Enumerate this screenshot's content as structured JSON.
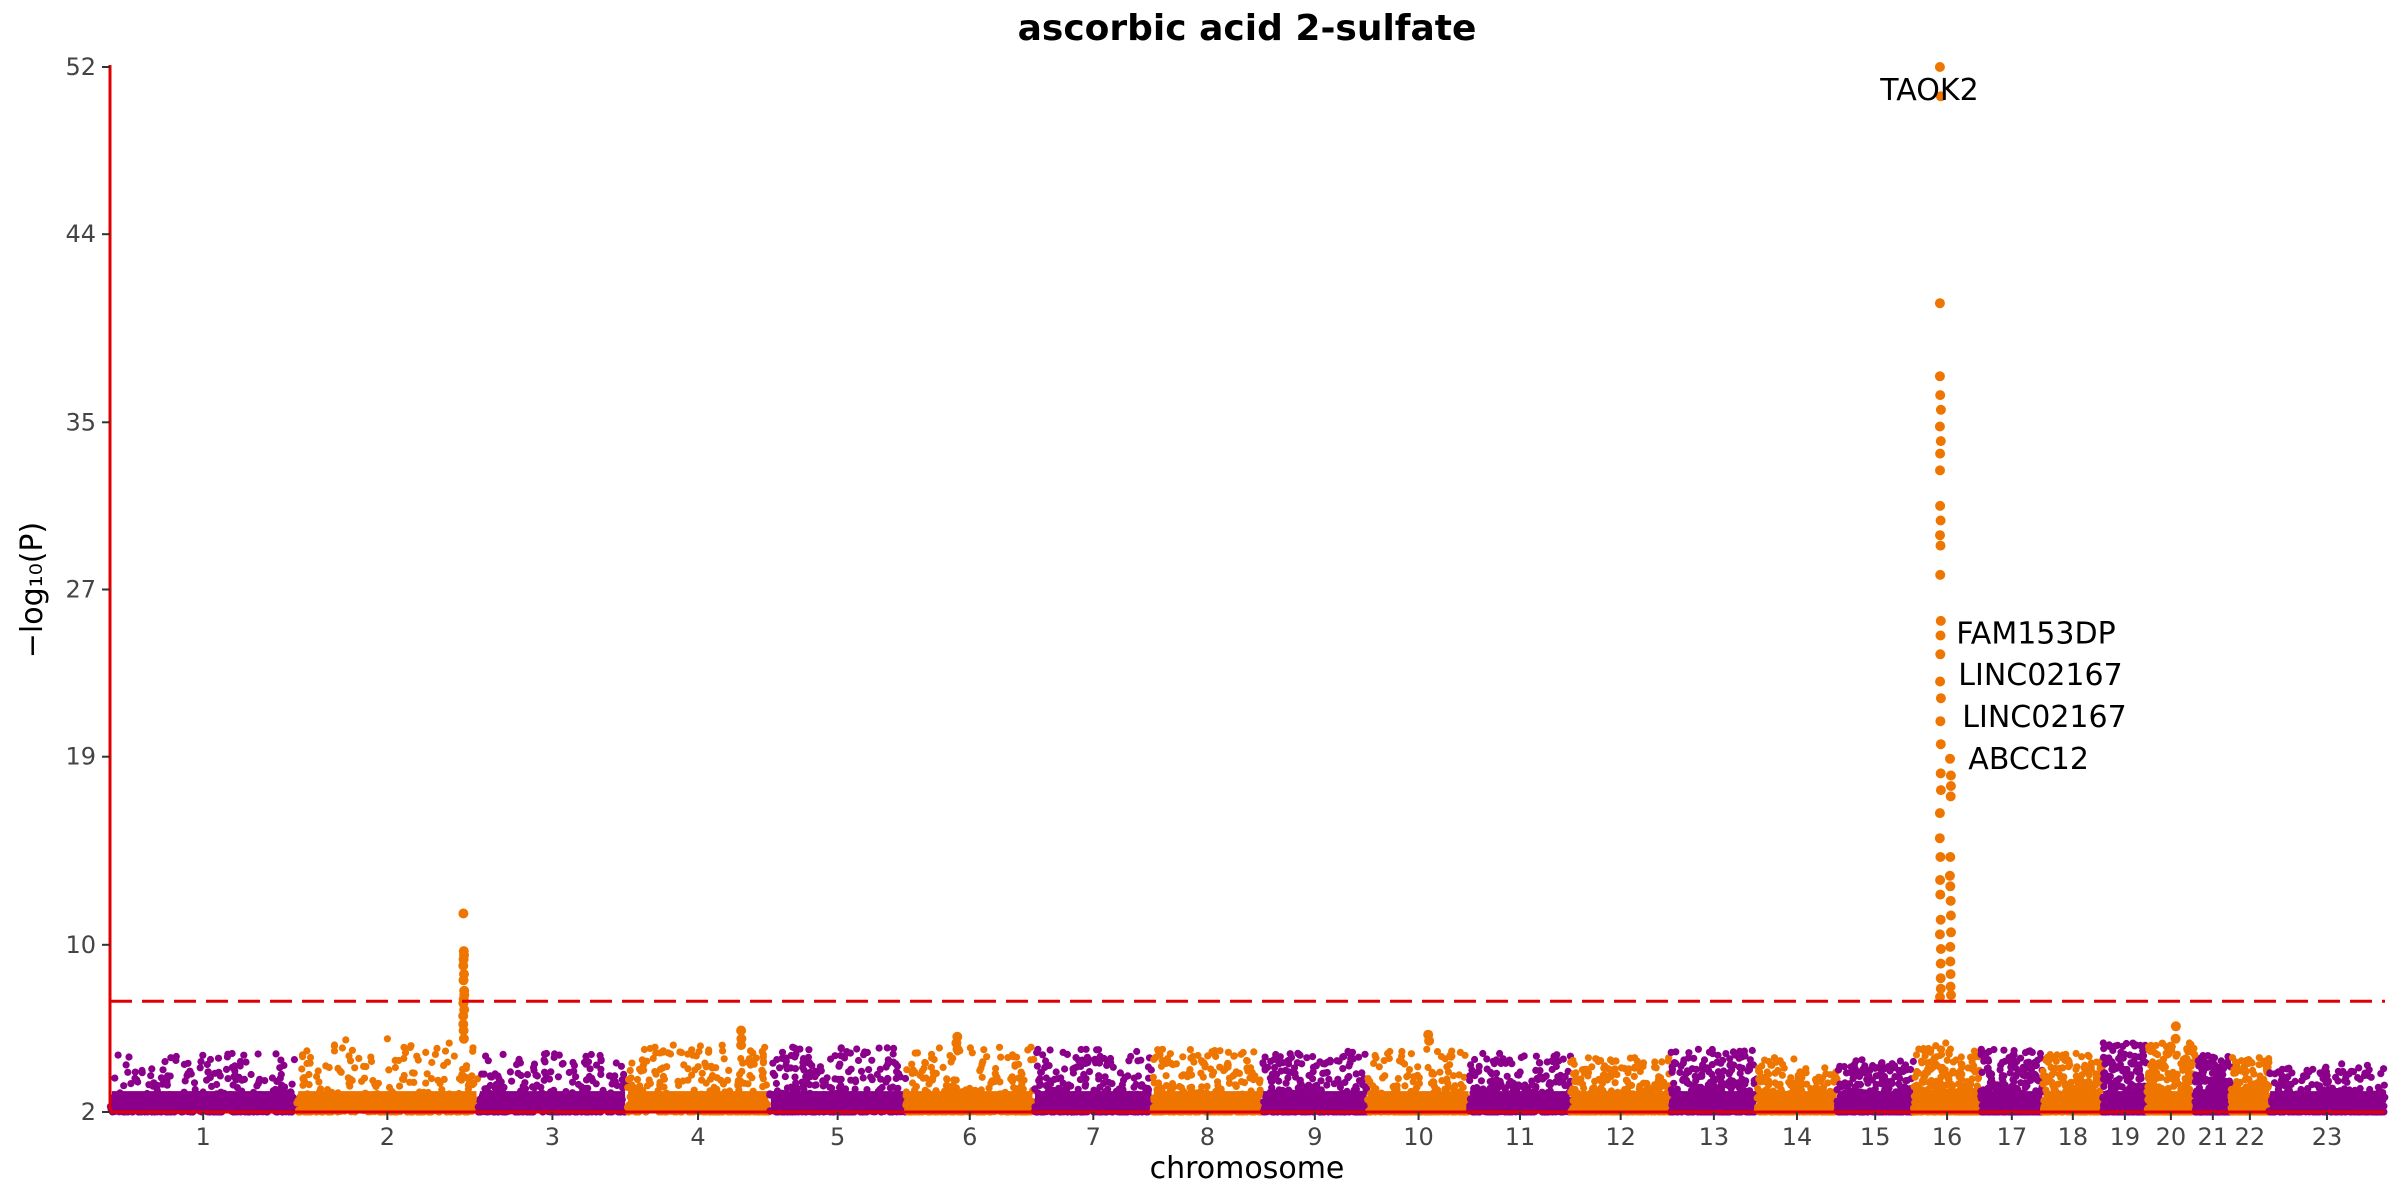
{
  "chart_data": {
    "type": "scatter",
    "subtype": "manhattan",
    "title": "ascorbic acid 2-sulfate",
    "xlabel": "chromosome",
    "ylabel": "−log₁₀(P)",
    "ylim": [
      2,
      52
    ],
    "yticks": [
      "2",
      "10",
      "19",
      "27",
      "35",
      "44",
      "52"
    ],
    "ytick_values": [
      2,
      10,
      19,
      27,
      35,
      44,
      52
    ],
    "colors": {
      "odd": "#8B008B",
      "even": "#EE7600",
      "axis": "#E00000",
      "threshold": "#E00000"
    },
    "threshold": 7.3,
    "grid": false,
    "chromosomes": [
      "1",
      "2",
      "3",
      "4",
      "5",
      "6",
      "7",
      "8",
      "9",
      "10",
      "11",
      "12",
      "13",
      "14",
      "15",
      "16",
      "17",
      "18",
      "19",
      "20",
      "21",
      "22",
      "23"
    ],
    "chromosome_lengths": [
      249,
      243,
      198,
      191,
      182,
      171,
      159,
      146,
      141,
      136,
      135,
      134,
      115,
      107,
      102,
      90,
      83,
      80,
      59,
      64,
      48,
      51,
      155
    ],
    "chromosome_max_background": [
      4.8,
      5.5,
      4.8,
      5.2,
      5.1,
      5.1,
      5.0,
      5.0,
      4.9,
      5.0,
      4.8,
      4.6,
      5.0,
      4.6,
      4.5,
      5.3,
      5.0,
      4.8,
      5.3,
      5.3,
      4.7,
      4.6,
      4.3
    ],
    "peaks": [
      {
        "chromosome": "2",
        "position": 0.92,
        "values": [
          11.5,
          9.7,
          9.5,
          9.3,
          9.0,
          8.6,
          8.3,
          7.8,
          7.6,
          7.4,
          7.2,
          6.9,
          6.6,
          6.2,
          5.9,
          5.5
        ]
      },
      {
        "chromosome": "16",
        "position": 0.4,
        "values": [
          52.0,
          50.6,
          40.7,
          37.2,
          36.3,
          35.6,
          34.8,
          34.1,
          33.5,
          32.7,
          31.0,
          30.3,
          29.6,
          29.1,
          27.7,
          25.5,
          24.8,
          23.9,
          22.6,
          21.8,
          20.7,
          19.6,
          18.2,
          17.4,
          16.3,
          15.1,
          14.2,
          13.1,
          12.4,
          11.2,
          10.5,
          9.8,
          9.1,
          8.4,
          7.9,
          7.5
        ]
      },
      {
        "chromosome": "16",
        "position": 0.55,
        "values": [
          18.9,
          18.1,
          17.6,
          17.1,
          14.2,
          13.3,
          12.8,
          12.1,
          11.4,
          10.6,
          9.9,
          9.2,
          8.6,
          8.0,
          7.6
        ]
      },
      {
        "chromosome": "4",
        "position": 0.8,
        "values": [
          5.9,
          5.5,
          5.2
        ]
      },
      {
        "chromosome": "6",
        "position": 0.4,
        "values": [
          5.6,
          5.3,
          5.0
        ]
      },
      {
        "chromosome": "10",
        "position": 0.6,
        "values": [
          5.7,
          5.4
        ]
      },
      {
        "chromosome": "20",
        "position": 0.6,
        "values": [
          6.1,
          5.5
        ]
      }
    ],
    "annotations": [
      {
        "label": "TAOK2",
        "chromosome": "16",
        "value": 50.9
      },
      {
        "label": "FAM153DP",
        "chromosome": "16",
        "value": 24.9
      },
      {
        "label": "LINC02167",
        "chromosome": "16",
        "value": 22.9
      },
      {
        "label": "LINC02167",
        "chromosome": "16",
        "value": 20.9
      },
      {
        "label": "ABCC12",
        "chromosome": "16",
        "value": 18.9
      }
    ]
  }
}
